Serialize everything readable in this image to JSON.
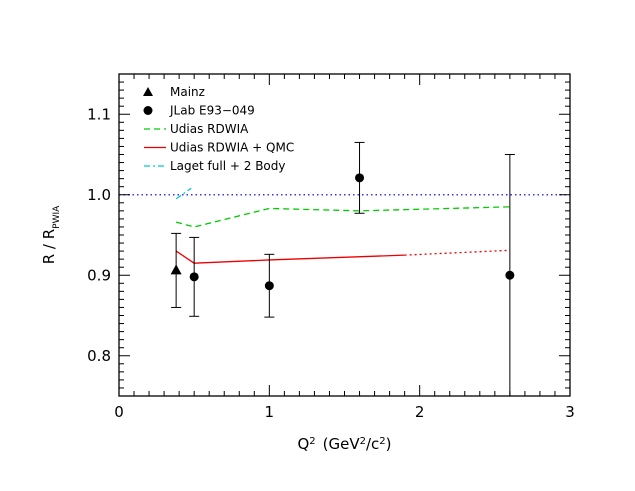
{
  "chart_data": {
    "type": "scatter",
    "xlim": [
      0,
      3
    ],
    "ylim": [
      0.75,
      1.15
    ],
    "x_ticks": [
      "0",
      "1",
      "2",
      "3"
    ],
    "y_ticks": [
      "0.8",
      "0.9",
      "1.0",
      "1.1"
    ],
    "xlabel": {
      "q": "Q",
      "q_sup": "2",
      "open": "(GeV",
      "gev_sup": "2",
      "slash": "/c",
      "c_sup": "2",
      "close": ")"
    },
    "ylabel": {
      "main": "R / R",
      "sub": "PWIA"
    },
    "legend": {
      "placement": "top-left",
      "entries": [
        {
          "label": "Mainz",
          "style": "triangle",
          "color": "#000000"
        },
        {
          "label": "JLab  E93−049",
          "style": "circle",
          "color": "#000000"
        },
        {
          "label": "Udias  RDWIA",
          "style": "dashed",
          "color": "#00cc00"
        },
        {
          "label": "Udias  RDWIA + QMC",
          "style": "solid",
          "color": "#ee0000"
        },
        {
          "label": "Laget  full + 2  Body",
          "style": "dashdot",
          "color": "#00cccc"
        }
      ]
    },
    "series": [
      {
        "name": "Mainz",
        "marker": "triangle",
        "color": "#000000",
        "points": [
          {
            "x": 0.38,
            "y": 0.906,
            "err_low": 0.046,
            "err_high": 0.046
          }
        ]
      },
      {
        "name": "JLab  E93−049",
        "marker": "circle",
        "color": "#000000",
        "points": [
          {
            "x": 0.5,
            "y": 0.898,
            "err_low": 0.049,
            "err_high": 0.049
          },
          {
            "x": 1.0,
            "y": 0.887,
            "err_low": 0.039,
            "err_high": 0.039
          },
          {
            "x": 1.6,
            "y": 1.021,
            "err_low": 0.044,
            "err_high": 0.044
          },
          {
            "x": 2.6,
            "y": 0.9,
            "err_low": 0.155,
            "err_high": 0.15
          }
        ]
      }
    ],
    "curves": [
      {
        "name": "Udias  RDWIA",
        "color": "#00cc00",
        "style": "dashed",
        "x": [
          0.38,
          0.5,
          1.0,
          1.6,
          2.0,
          2.6
        ],
        "y": [
          0.966,
          0.96,
          0.983,
          0.98,
          0.982,
          0.985
        ]
      },
      {
        "name": "Udias  RDWIA + QMC",
        "color": "#ee0000",
        "style": "solid",
        "x": [
          0.38,
          0.5,
          1.0,
          1.9
        ],
        "y": [
          0.93,
          0.915,
          0.919,
          0.925
        ]
      },
      {
        "name": "Udias  RDWIA + QMC",
        "color": "#ee0000",
        "style": "dotted",
        "x": [
          1.9,
          2.6
        ],
        "y": [
          0.925,
          0.931
        ]
      },
      {
        "name": "Laget  full + 2  Body",
        "color": "#00cccc",
        "style": "dashdot",
        "x": [
          0.38,
          0.48
        ],
        "y": [
          0.995,
          1.008
        ]
      }
    ],
    "reference_line": {
      "y": 1.0,
      "color": "#3333ff",
      "style": "dotted"
    }
  }
}
